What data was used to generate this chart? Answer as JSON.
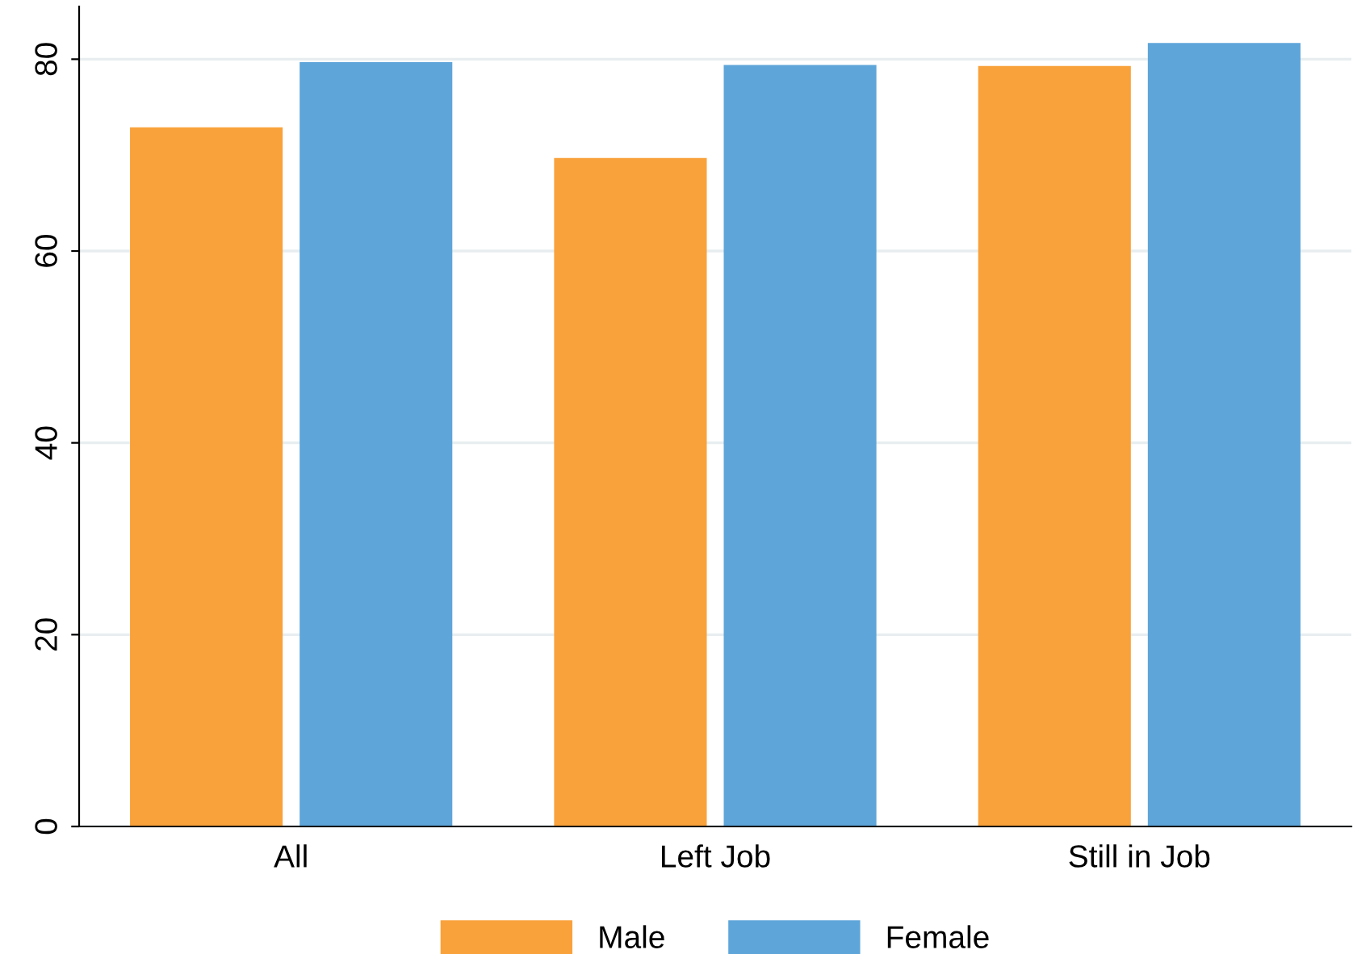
{
  "chart_data": {
    "type": "bar",
    "categories": [
      "All",
      "Left Job",
      "Still in Job"
    ],
    "series": [
      {
        "name": "Male",
        "color": "#f9a23b",
        "values": [
          72.9,
          69.7,
          79.3
        ]
      },
      {
        "name": "Female",
        "color": "#5ea5da",
        "values": [
          79.7,
          79.4,
          81.7
        ]
      }
    ],
    "ylim": [
      0,
      85.5
    ],
    "yticks": [
      0,
      20,
      40,
      60,
      80
    ],
    "grid": "y",
    "legend": "bottom"
  }
}
